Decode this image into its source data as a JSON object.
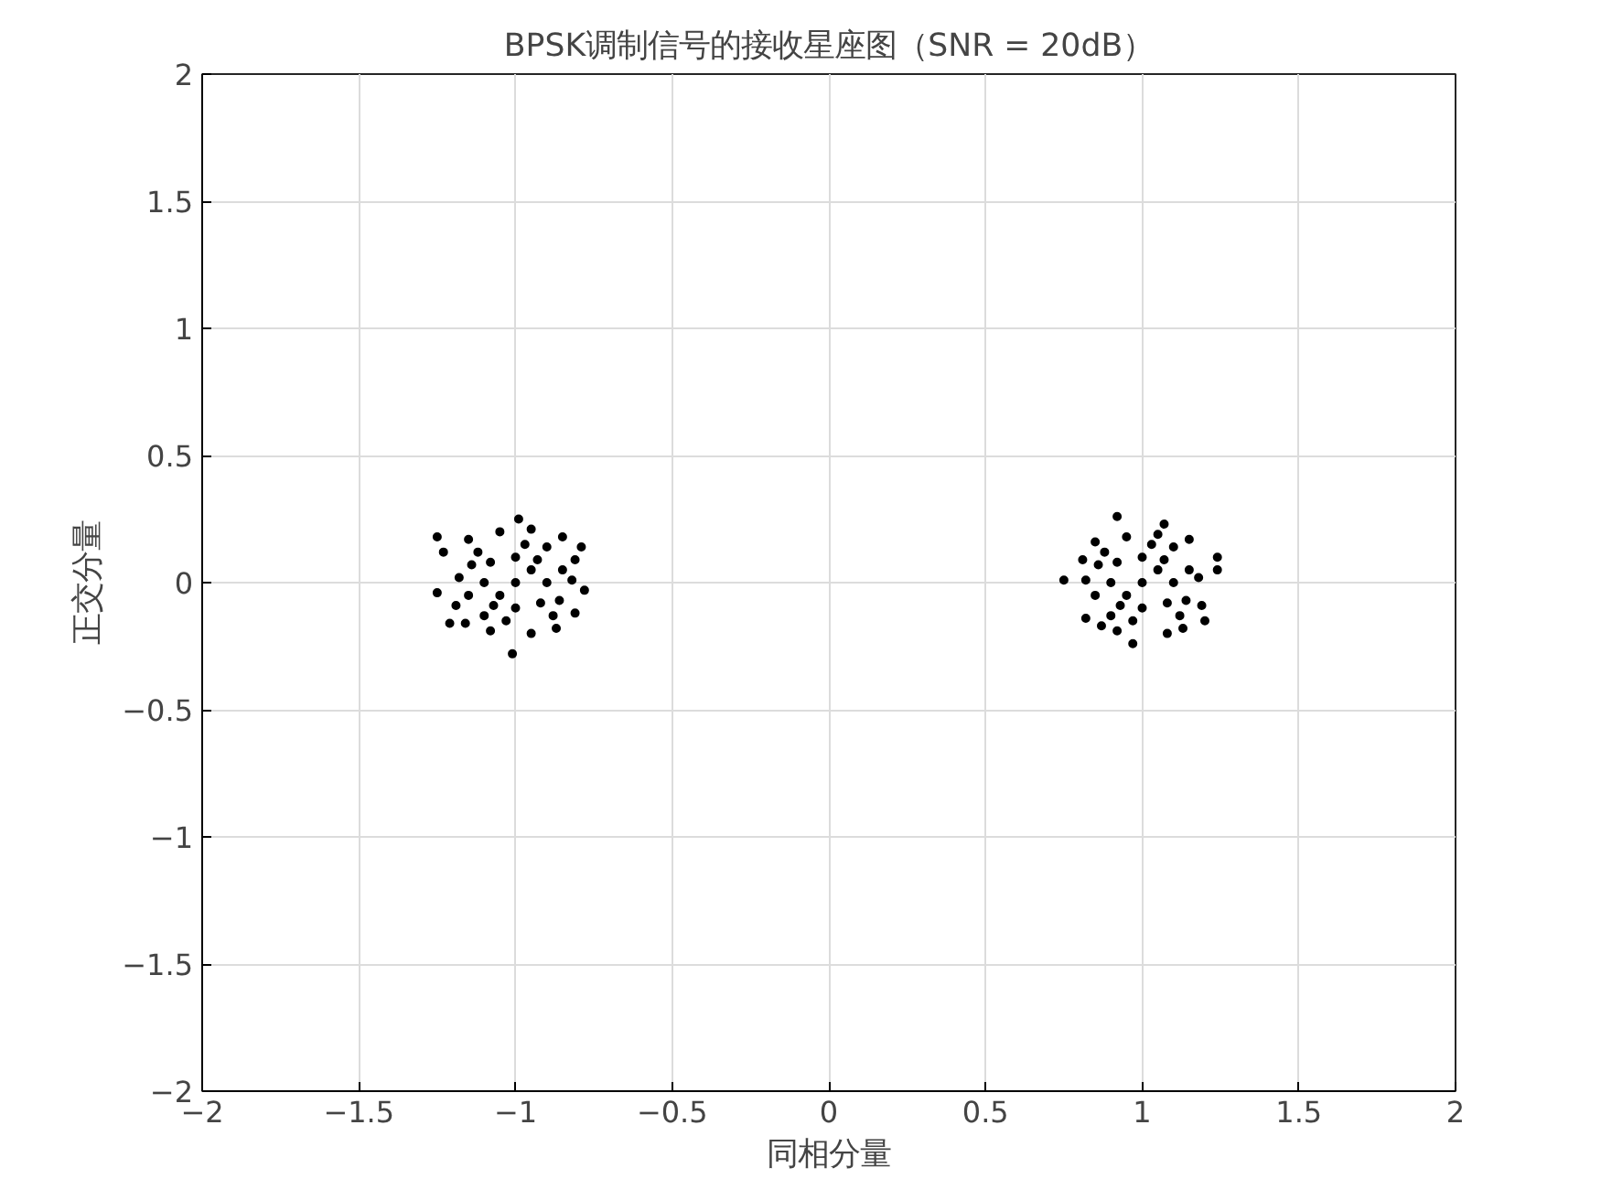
{
  "chart_data": {
    "type": "scatter",
    "title": "BPSK调制信号的接收星座图（SNR = 20dB）",
    "xlabel": "同相分量",
    "ylabel": "正交分量",
    "xlim": [
      -2,
      2
    ],
    "ylim": [
      -2,
      2
    ],
    "xticks": [
      -2,
      -1.5,
      -1,
      -0.5,
      0,
      0.5,
      1,
      1.5,
      2
    ],
    "yticks": [
      -2,
      -1.5,
      -1,
      -0.5,
      0,
      0.5,
      1,
      1.5,
      2
    ],
    "grid": true,
    "marker": "circle",
    "series": [
      {
        "color": "#000000",
        "x": [
          -1,
          -0.95,
          -1.05,
          -0.9,
          -1.1,
          -1,
          -1,
          -0.92,
          -1.08,
          -0.93,
          -1.07,
          -0.85,
          -1.15,
          -0.86,
          -1.14,
          -0.97,
          -1.03,
          -0.9,
          -1.1,
          -0.88,
          -1.12,
          -1.18,
          -0.82,
          -1.19,
          -0.81,
          -1.25,
          -1.23,
          -1.01,
          -0.99,
          -1.25,
          -1.21,
          -0.79,
          -0.78,
          -0.81,
          -0.95,
          -1.05,
          -0.95,
          -1.08,
          -0.85,
          -1.15,
          -0.87,
          -1.16,
          1,
          1.05,
          0.95,
          1.1,
          0.9,
          1,
          1,
          1.08,
          0.92,
          1.07,
          0.93,
          1.15,
          0.85,
          1.14,
          0.86,
          1.03,
          0.97,
          1.1,
          0.9,
          1.12,
          0.88,
          1.18,
          0.82,
          1.19,
          0.81,
          0.92,
          1.24,
          1.24,
          0.75,
          1.07,
          1.2,
          0.97,
          0.82,
          1.05,
          0.95,
          1.08,
          0.92,
          1.15,
          0.85,
          1.13,
          0.87
        ],
        "values": [
          0,
          0.05,
          -0.05,
          0,
          0,
          0.1,
          -0.1,
          -0.08,
          0.08,
          0.09,
          -0.09,
          0.05,
          -0.05,
          -0.07,
          0.07,
          0.15,
          -0.15,
          0.14,
          -0.13,
          -0.13,
          0.12,
          0.02,
          0.01,
          -0.09,
          0.09,
          0.18,
          0.12,
          -0.28,
          0.25,
          -0.04,
          -0.16,
          0.14,
          -0.03,
          -0.12,
          0.21,
          0.2,
          -0.2,
          -0.19,
          0.18,
          0.17,
          -0.18,
          -0.16,
          0,
          0.05,
          -0.05,
          0,
          0,
          0.1,
          -0.1,
          -0.08,
          0.08,
          0.09,
          -0.09,
          0.05,
          -0.05,
          -0.07,
          0.07,
          0.15,
          -0.15,
          0.14,
          -0.13,
          -0.13,
          0.12,
          0.02,
          0.01,
          -0.09,
          0.09,
          0.26,
          0.1,
          0.05,
          0.01,
          0.23,
          -0.15,
          -0.24,
          -0.14,
          0.19,
          0.18,
          -0.2,
          -0.19,
          0.17,
          0.16,
          -0.18,
          -0.17
        ]
      }
    ]
  }
}
